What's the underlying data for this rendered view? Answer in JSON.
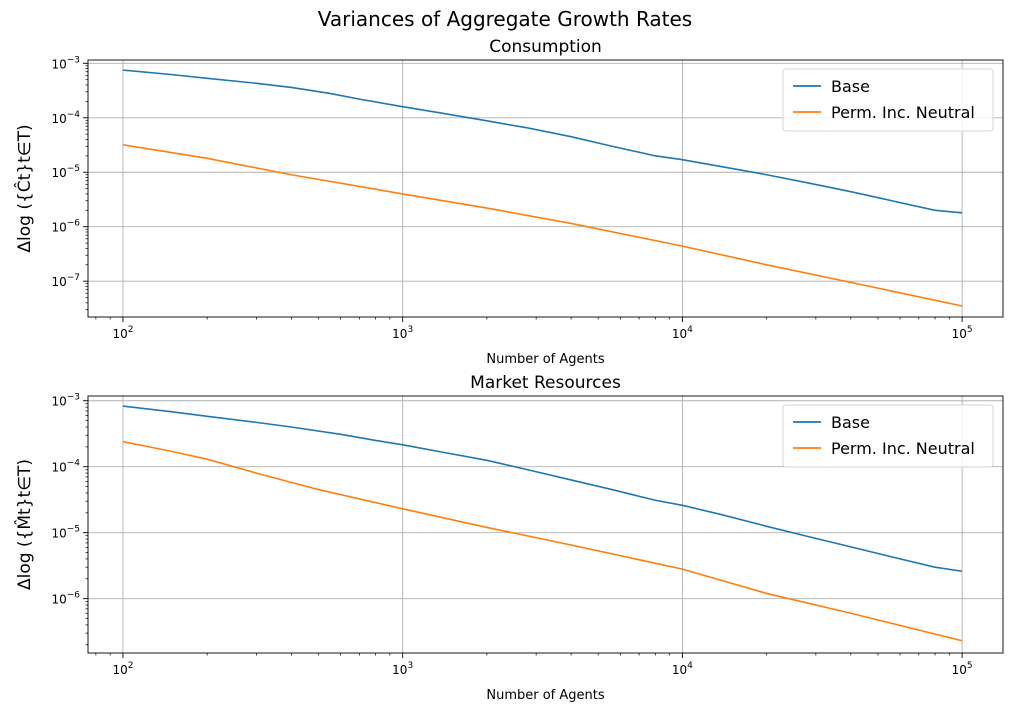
{
  "figure": {
    "title": "Variances of Aggregate Growth Rates"
  },
  "colors": {
    "base": "#1f77b4",
    "neutral": "#ff7f0e",
    "grid": "#b0b0b0"
  },
  "chart_data": [
    {
      "type": "line",
      "title": "Consumption",
      "xlabel": "Number of Agents",
      "ylabel": "Δlog ({Ĉt}t∈T)",
      "xscale": "log",
      "yscale": "log",
      "xlim": [
        75,
        140000
      ],
      "ylim": [
        2.2e-08,
        0.00115
      ],
      "xticks": [
        {
          "base": "10",
          "exp": "2",
          "value": 100
        },
        {
          "base": "10",
          "exp": "3",
          "value": 1000
        },
        {
          "base": "10",
          "exp": "4",
          "value": 10000
        },
        {
          "base": "10",
          "exp": "5",
          "value": 100000
        }
      ],
      "yticks": [
        {
          "base": "10",
          "exp": "−7",
          "value": 1e-07
        },
        {
          "base": "10",
          "exp": "−6",
          "value": 1e-06
        },
        {
          "base": "10",
          "exp": "−5",
          "value": 1e-05
        },
        {
          "base": "10",
          "exp": "−4",
          "value": 0.0001
        },
        {
          "base": "10",
          "exp": "−3",
          "value": 0.001
        }
      ],
      "grid": true,
      "legend_position": "top-right",
      "series": [
        {
          "name": "Base",
          "color": "#1f77b4",
          "x": [
            100,
            150,
            200,
            300,
            400,
            550,
            700,
            1000,
            1400,
            2000,
            2800,
            4000,
            5600,
            8000,
            10000,
            14000,
            20000,
            28000,
            40000,
            56000,
            80000,
            100000
          ],
          "y": [
            0.00075,
            0.00062,
            0.00053,
            0.00043,
            0.00036,
            0.00028,
            0.00022,
            0.00016,
            0.00012,
            8.8e-05,
            6.5e-05,
            4.5e-05,
            3e-05,
            2e-05,
            1.7e-05,
            1.25e-05,
            9e-06,
            6.4e-06,
            4.4e-06,
            3e-06,
            2e-06,
            1.8e-06
          ]
        },
        {
          "name": "Perm. Inc. Neutral",
          "color": "#ff7f0e",
          "x": [
            100,
            200,
            400,
            1000,
            2000,
            4000,
            10000,
            20000,
            40000,
            100000
          ],
          "y": [
            3.2e-05,
            1.8e-05,
            9e-06,
            4e-06,
            2.2e-06,
            1.15e-06,
            4.4e-07,
            2e-07,
            9.5e-08,
            3.5e-08
          ]
        }
      ]
    },
    {
      "type": "line",
      "title": "Market Resources",
      "xlabel": "Number of Agents",
      "ylabel": "Δlog ({M̂t}t∈T)",
      "xscale": "log",
      "yscale": "log",
      "xlim": [
        75,
        140000
      ],
      "ylim": [
        1.5e-07,
        0.00118
      ],
      "xticks": [
        {
          "base": "10",
          "exp": "2",
          "value": 100
        },
        {
          "base": "10",
          "exp": "3",
          "value": 1000
        },
        {
          "base": "10",
          "exp": "4",
          "value": 10000
        },
        {
          "base": "10",
          "exp": "5",
          "value": 100000
        }
      ],
      "yticks": [
        {
          "base": "10",
          "exp": "−6",
          "value": 1e-06
        },
        {
          "base": "10",
          "exp": "−5",
          "value": 1e-05
        },
        {
          "base": "10",
          "exp": "−4",
          "value": 0.0001
        },
        {
          "base": "10",
          "exp": "−3",
          "value": 0.001
        }
      ],
      "grid": true,
      "legend_position": "top-right",
      "series": [
        {
          "name": "Base",
          "color": "#1f77b4",
          "x": [
            100,
            150,
            200,
            300,
            400,
            600,
            800,
            1000,
            1400,
            2000,
            2800,
            4000,
            5600,
            8000,
            10000,
            14000,
            20000,
            28000,
            40000,
            56000,
            80000,
            100000
          ],
          "y": [
            0.00083,
            0.00068,
            0.00058,
            0.00047,
            0.0004,
            0.00031,
            0.00025,
            0.000215,
            0.000165,
            0.000125,
            9e-05,
            6.3e-05,
            4.5e-05,
            3.1e-05,
            2.6e-05,
            1.85e-05,
            1.25e-05,
            8.8e-06,
            6.1e-06,
            4.3e-06,
            3e-06,
            2.6e-06
          ]
        },
        {
          "name": "Perm. Inc. Neutral",
          "color": "#ff7f0e",
          "x": [
            100,
            150,
            200,
            300,
            500,
            1000,
            2000,
            4000,
            10000,
            20000,
            40000,
            100000
          ],
          "y": [
            0.00024,
            0.00017,
            0.00013,
            8e-05,
            4.5e-05,
            2.3e-05,
            1.2e-05,
            6.5e-06,
            2.8e-06,
            1.2e-06,
            6e-07,
            2.3e-07
          ]
        }
      ]
    }
  ]
}
